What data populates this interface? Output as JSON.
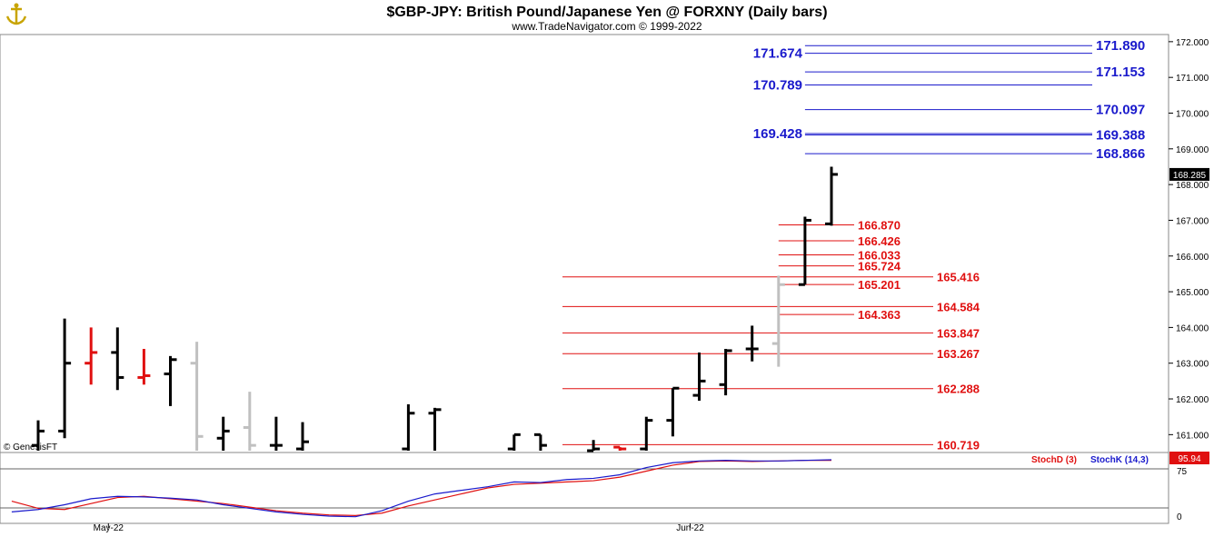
{
  "header": {
    "title": "$GBP-JPY:  British Pound/Japanese Yen @ FORXNY  (Daily bars)",
    "subtitle": "www.TradeNavigator.com © 1999-2022"
  },
  "watermark": "© GenesisFT",
  "last_price_label": "168.285",
  "indicator": {
    "stoch_d_label": "StochD (3)",
    "stoch_k_label": "StochK (14,3)",
    "value_badge": "95.94",
    "axis_labels": [
      "75",
      "0"
    ],
    "colors": {
      "stoch_d": "#e01010",
      "stoch_k": "#1a1acc"
    }
  },
  "chart_data": {
    "type": "ohlc",
    "title": "$GBP-JPY:  British Pound/Japanese Yen @ FORXNY  (Daily bars)",
    "ylim": [
      160.5,
      172.2
    ],
    "y_ticks": [
      "161.000",
      "162.000",
      "163.000",
      "164.000",
      "165.000",
      "166.000",
      "167.000",
      "168.000",
      "169.000",
      "170.000",
      "171.000",
      "172.000"
    ],
    "x_labels": [
      {
        "label": "May-22",
        "index": 3
      },
      {
        "label": "Jun-22",
        "index": 25
      }
    ],
    "bars": [
      {
        "i": 0,
        "o": 160.7,
        "h": 161.4,
        "l": 160.5,
        "c": 161.1,
        "color": "black"
      },
      {
        "i": 1,
        "o": 161.1,
        "h": 164.25,
        "l": 160.9,
        "c": 163.0,
        "color": "black"
      },
      {
        "i": 2,
        "o": 163.0,
        "h": 164.0,
        "l": 162.4,
        "c": 163.3,
        "color": "red"
      },
      {
        "i": 3,
        "o": 163.3,
        "h": 164.0,
        "l": 162.25,
        "c": 162.6,
        "color": "black"
      },
      {
        "i": 4,
        "o": 162.6,
        "h": 163.4,
        "l": 162.4,
        "c": 162.65,
        "color": "red"
      },
      {
        "i": 5,
        "o": 162.7,
        "h": 163.2,
        "l": 161.8,
        "c": 163.1,
        "color": "black"
      },
      {
        "i": 6,
        "o": 163.0,
        "h": 163.6,
        "l": 160.5,
        "c": 160.95,
        "color": "gray"
      },
      {
        "i": 7,
        "o": 160.9,
        "h": 161.5,
        "l": 160.5,
        "c": 161.1,
        "color": "black"
      },
      {
        "i": 8,
        "o": 161.2,
        "h": 162.2,
        "l": 160.5,
        "c": 160.7,
        "color": "gray"
      },
      {
        "i": 9,
        "o": 160.7,
        "h": 161.5,
        "l": 160.5,
        "c": 160.7,
        "color": "black"
      },
      {
        "i": 10,
        "o": 160.6,
        "h": 161.35,
        "l": 160.5,
        "c": 160.8,
        "color": "black"
      },
      {
        "i": 14,
        "o": 160.6,
        "h": 161.85,
        "l": 160.5,
        "c": 161.6,
        "color": "black"
      },
      {
        "i": 15,
        "o": 161.6,
        "h": 161.75,
        "l": 160.5,
        "c": 161.7,
        "color": "black"
      },
      {
        "i": 18,
        "o": 160.6,
        "h": 161.0,
        "l": 160.5,
        "c": 161.0,
        "color": "black"
      },
      {
        "i": 19,
        "o": 161.0,
        "h": 161.0,
        "l": 160.5,
        "c": 160.7,
        "color": "black"
      },
      {
        "i": 21,
        "o": 160.5,
        "h": 160.85,
        "l": 160.5,
        "c": 160.6,
        "color": "black"
      },
      {
        "i": 22,
        "o": 160.65,
        "h": 160.65,
        "l": 160.5,
        "c": 160.6,
        "color": "red"
      },
      {
        "i": 23,
        "o": 160.6,
        "h": 161.5,
        "l": 160.5,
        "c": 161.4,
        "color": "black"
      },
      {
        "i": 24,
        "o": 161.4,
        "h": 162.3,
        "l": 160.95,
        "c": 162.3,
        "color": "black"
      },
      {
        "i": 25,
        "o": 162.1,
        "h": 163.3,
        "l": 161.95,
        "c": 162.5,
        "color": "black"
      },
      {
        "i": 26,
        "o": 162.4,
        "h": 163.4,
        "l": 162.1,
        "c": 163.35,
        "color": "black"
      },
      {
        "i": 27,
        "o": 163.4,
        "h": 164.05,
        "l": 163.05,
        "c": 163.4,
        "color": "black"
      },
      {
        "i": 28,
        "o": 163.55,
        "h": 165.45,
        "l": 162.9,
        "c": 165.2,
        "color": "gray"
      },
      {
        "i": 29,
        "o": 165.2,
        "h": 167.1,
        "l": 165.2,
        "c": 167.0,
        "color": "black"
      },
      {
        "i": 30,
        "o": 166.9,
        "h": 168.5,
        "l": 166.85,
        "c": 168.285,
        "color": "black"
      }
    ],
    "levels": [
      {
        "value": "171.890",
        "price": 171.89,
        "group": "blue",
        "label_side": "right",
        "line_start": 29
      },
      {
        "value": "171.674",
        "price": 171.674,
        "group": "blue",
        "label_side": "left",
        "line_start": 29
      },
      {
        "value": "171.153",
        "price": 171.153,
        "group": "blue",
        "label_side": "right",
        "line_start": 29
      },
      {
        "value": "170.789",
        "price": 170.789,
        "group": "blue",
        "label_side": "left",
        "line_start": 29
      },
      {
        "value": "170.097",
        "price": 170.097,
        "group": "blue",
        "label_side": "right",
        "line_start": 29
      },
      {
        "value": "169.428",
        "price": 169.428,
        "group": "blue",
        "label_side": "left",
        "line_start": 29
      },
      {
        "value": "169.388",
        "price": 169.388,
        "group": "blue",
        "label_side": "right",
        "line_start": 29
      },
      {
        "value": "168.866",
        "price": 168.866,
        "group": "blue",
        "label_side": "right",
        "line_start": 29
      },
      {
        "value": "166.870",
        "price": 166.87,
        "group": "red",
        "label_side": "mid",
        "line_start": 28
      },
      {
        "value": "166.426",
        "price": 166.426,
        "group": "red",
        "label_side": "mid",
        "line_start": 28
      },
      {
        "value": "166.033",
        "price": 166.033,
        "group": "red",
        "label_side": "mid",
        "line_start": 28
      },
      {
        "value": "165.724",
        "price": 165.724,
        "group": "red",
        "label_side": "mid",
        "line_start": 28
      },
      {
        "value": "165.416",
        "price": 165.416,
        "group": "red",
        "label_side": "far",
        "line_start": 20
      },
      {
        "value": "165.201",
        "price": 165.201,
        "group": "red",
        "label_side": "mid",
        "line_start": 28
      },
      {
        "value": "164.584",
        "price": 164.584,
        "group": "red",
        "label_side": "far",
        "line_start": 20
      },
      {
        "value": "164.363",
        "price": 164.363,
        "group": "red",
        "label_side": "mid",
        "line_start": 28
      },
      {
        "value": "163.847",
        "price": 163.847,
        "group": "red",
        "label_side": "far",
        "line_start": 20
      },
      {
        "value": "163.267",
        "price": 163.267,
        "group": "red",
        "label_side": "far",
        "line_start": 20
      },
      {
        "value": "162.288",
        "price": 162.288,
        "group": "red",
        "label_side": "far",
        "line_start": 20
      },
      {
        "value": "160.719",
        "price": 160.719,
        "group": "red",
        "label_side": "far",
        "line_start": 20
      }
    ],
    "stoch_k": [
      [
        -1,
        10
      ],
      [
        0,
        14
      ],
      [
        1,
        22
      ],
      [
        2,
        32
      ],
      [
        3,
        36
      ],
      [
        4,
        35
      ],
      [
        5,
        33
      ],
      [
        6,
        30
      ],
      [
        7,
        22
      ],
      [
        8,
        16
      ],
      [
        9,
        10
      ],
      [
        10,
        6
      ],
      [
        11,
        3
      ],
      [
        12,
        2
      ],
      [
        13,
        12
      ],
      [
        14,
        28
      ],
      [
        15,
        40
      ],
      [
        16,
        46
      ],
      [
        17,
        52
      ],
      [
        18,
        60
      ],
      [
        19,
        59
      ],
      [
        20,
        64
      ],
      [
        21,
        66
      ],
      [
        22,
        72
      ],
      [
        23,
        84
      ],
      [
        24,
        92
      ],
      [
        25,
        95
      ],
      [
        26,
        96
      ],
      [
        27,
        95
      ],
      [
        28,
        95
      ],
      [
        29,
        96
      ],
      [
        30,
        97
      ]
    ],
    "stoch_d": [
      [
        -1,
        28
      ],
      [
        0,
        16
      ],
      [
        1,
        14
      ],
      [
        2,
        24
      ],
      [
        3,
        34
      ],
      [
        4,
        36
      ],
      [
        5,
        32
      ],
      [
        6,
        28
      ],
      [
        7,
        24
      ],
      [
        8,
        18
      ],
      [
        9,
        12
      ],
      [
        10,
        8
      ],
      [
        11,
        5
      ],
      [
        12,
        4
      ],
      [
        13,
        8
      ],
      [
        14,
        20
      ],
      [
        15,
        30
      ],
      [
        16,
        40
      ],
      [
        17,
        50
      ],
      [
        18,
        56
      ],
      [
        19,
        58
      ],
      [
        20,
        60
      ],
      [
        21,
        62
      ],
      [
        22,
        68
      ],
      [
        23,
        78
      ],
      [
        24,
        88
      ],
      [
        25,
        94
      ],
      [
        26,
        95
      ],
      [
        27,
        94
      ],
      [
        28,
        95
      ],
      [
        29,
        96
      ],
      [
        30,
        96
      ]
    ]
  }
}
